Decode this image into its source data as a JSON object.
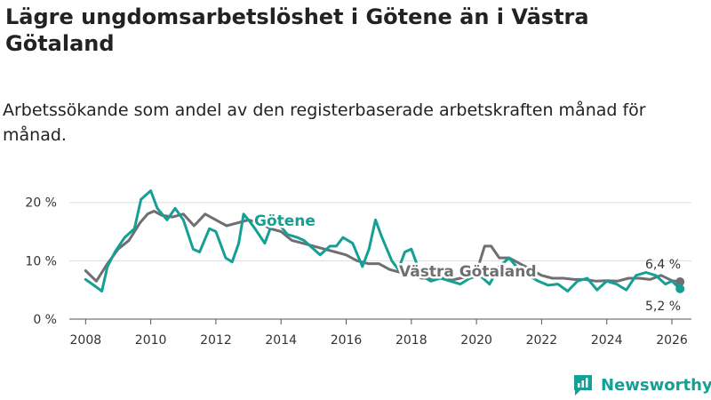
{
  "title": "Lägre ungdomsarbetslöshet i Götene än i Västra Götaland",
  "subtitle": "Arbetssökande som andel av den registerbaserade arbetskraften månad för månad.",
  "brand": "Newsworthy",
  "colors": {
    "gotene": "#159f95",
    "vastra": "#6e6e73",
    "grid": "#dddddd",
    "brand": "#159f95"
  },
  "chart_data": {
    "type": "line",
    "x_ticks": [
      "2008",
      "2010",
      "2012",
      "2014",
      "2016",
      "2018",
      "2020",
      "2022",
      "2024",
      "2026"
    ],
    "y_ticks": [
      "0 %",
      "10 %",
      "20 %"
    ],
    "ylim": [
      0,
      23
    ],
    "xlim": [
      2007.5,
      2026.6
    ],
    "series": [
      {
        "name": "Götene",
        "label": "Götene",
        "color": "#159f95",
        "end_label": "5,2 %",
        "x": [
          2008.0,
          2008.33,
          2008.5,
          2008.67,
          2008.9,
          2009.2,
          2009.5,
          2009.7,
          2009.9,
          2010.0,
          2010.2,
          2010.5,
          2010.75,
          2011.0,
          2011.3,
          2011.5,
          2011.8,
          2012.0,
          2012.3,
          2012.5,
          2012.7,
          2012.85,
          2013.0,
          2013.2,
          2013.5,
          2013.7,
          2013.9,
          2014.2,
          2014.5,
          2014.7,
          2014.9,
          2015.2,
          2015.5,
          2015.7,
          2015.9,
          2016.2,
          2016.5,
          2016.7,
          2016.9,
          2017.1,
          2017.4,
          2017.6,
          2017.8,
          2018.0,
          2018.3,
          2018.6,
          2018.9,
          2019.2,
          2019.5,
          2019.8,
          2020.1,
          2020.4,
          2020.7,
          2021.0,
          2021.3,
          2021.6,
          2021.9,
          2022.2,
          2022.5,
          2022.8,
          2023.1,
          2023.4,
          2023.7,
          2024.0,
          2024.3,
          2024.6,
          2024.9,
          2025.2,
          2025.5,
          2025.8,
          2026.0,
          2026.25
        ],
        "y": [
          6.8,
          5.5,
          4.8,
          9.0,
          11.5,
          14.0,
          15.5,
          20.5,
          21.5,
          22.0,
          19.0,
          17.0,
          19.0,
          17.0,
          12.0,
          11.5,
          15.5,
          15.0,
          10.5,
          9.8,
          13.0,
          18.0,
          17.0,
          15.5,
          13.0,
          16.0,
          16.5,
          14.5,
          14.0,
          13.5,
          12.5,
          11.0,
          12.5,
          12.5,
          14.0,
          13.0,
          9.0,
          12.0,
          17.0,
          14.0,
          10.0,
          8.5,
          11.5,
          12.0,
          7.5,
          6.5,
          7.0,
          6.5,
          6.0,
          7.0,
          7.5,
          6.0,
          9.0,
          10.5,
          8.5,
          7.5,
          6.5,
          5.8,
          6.0,
          4.8,
          6.5,
          7.0,
          5.0,
          6.5,
          6.0,
          5.0,
          7.5,
          8.0,
          7.5,
          6.0,
          6.5,
          5.2
        ]
      },
      {
        "name": "Västra Götaland",
        "label": "Västra Götaland",
        "color": "#6e6e73",
        "end_label": "6,4 %",
        "x": [
          2008.0,
          2008.33,
          2008.67,
          2009.0,
          2009.33,
          2009.67,
          2009.9,
          2010.1,
          2010.33,
          2010.67,
          2011.0,
          2011.33,
          2011.67,
          2012.0,
          2012.33,
          2012.67,
          2013.0,
          2013.33,
          2013.67,
          2014.0,
          2014.33,
          2014.67,
          2015.0,
          2015.33,
          2015.67,
          2016.0,
          2016.33,
          2016.67,
          2017.0,
          2017.33,
          2017.67,
          2018.0,
          2018.33,
          2018.67,
          2019.0,
          2019.33,
          2019.67,
          2020.0,
          2020.25,
          2020.45,
          2020.7,
          2021.0,
          2021.33,
          2021.67,
          2022.0,
          2022.33,
          2022.67,
          2023.0,
          2023.33,
          2023.67,
          2024.0,
          2024.33,
          2024.67,
          2025.0,
          2025.33,
          2025.67,
          2026.0,
          2026.25
        ],
        "y": [
          8.3,
          6.5,
          9.5,
          12.0,
          13.5,
          16.5,
          18.0,
          18.5,
          17.8,
          17.5,
          18.0,
          16.0,
          18.0,
          17.0,
          16.0,
          16.5,
          17.0,
          16.5,
          15.5,
          15.0,
          13.5,
          13.0,
          12.5,
          12.0,
          11.5,
          11.0,
          10.0,
          9.5,
          9.5,
          8.5,
          8.0,
          7.5,
          7.0,
          7.0,
          7.0,
          6.8,
          7.2,
          8.0,
          12.5,
          12.5,
          10.5,
          10.5,
          9.5,
          8.5,
          7.5,
          7.0,
          7.0,
          6.8,
          6.8,
          6.5,
          6.6,
          6.5,
          7.0,
          7.0,
          6.8,
          7.5,
          6.6,
          6.4
        ]
      }
    ]
  }
}
